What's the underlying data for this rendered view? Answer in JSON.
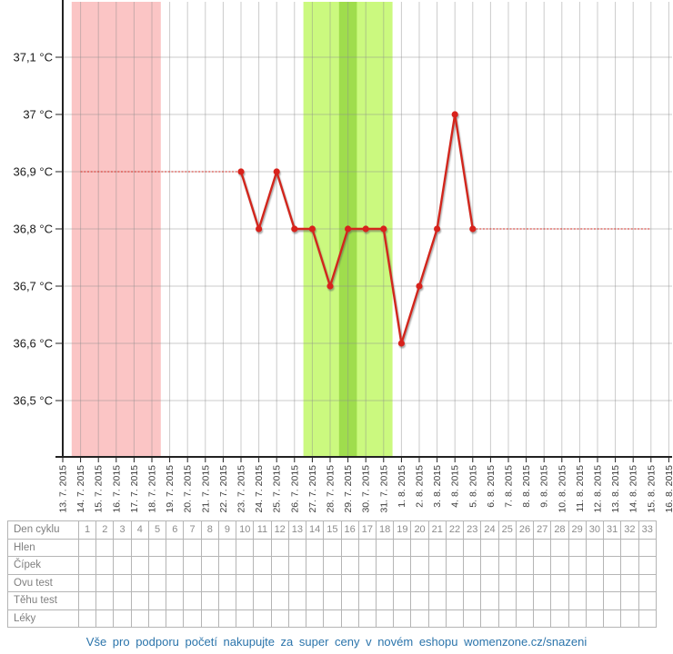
{
  "footer": {
    "text": "Vše pro podporu početí nakupujte za super ceny v novém eshopu womenzone.cz/snazeni"
  },
  "table": {
    "day_row_label": "Den cyklu",
    "days": [
      "1",
      "2",
      "3",
      "4",
      "5",
      "6",
      "7",
      "8",
      "9",
      "10",
      "11",
      "12",
      "13",
      "14",
      "15",
      "16",
      "17",
      "18",
      "19",
      "20",
      "21",
      "22",
      "23",
      "24",
      "25",
      "26",
      "27",
      "28",
      "29",
      "30",
      "31",
      "32",
      "33"
    ],
    "row_labels": [
      "Hlen",
      "Čípek",
      "Ovu test",
      "Těhu test",
      "Léky"
    ]
  },
  "chart_data": {
    "type": "line",
    "x_dates": [
      "13. 7. 2015",
      "14. 7. 2015",
      "15. 7. 2015",
      "16. 7. 2015",
      "17. 7. 2015",
      "18. 7. 2015",
      "19. 7. 2015",
      "20. 7. 2015",
      "21. 7. 2015",
      "22. 7. 2015",
      "23. 7. 2015",
      "24. 7. 2015",
      "25. 7. 2015",
      "26. 7. 2015",
      "27. 7. 2015",
      "28. 7. 2015",
      "29. 7. 2015",
      "30. 7. 2015",
      "31. 7. 2015",
      "1. 8. 2015",
      "2. 8. 2015",
      "3. 8. 2015",
      "4. 8. 2015",
      "5. 8. 2015",
      "6. 8. 2015",
      "7. 8. 2015",
      "8. 8. 2015",
      "9. 8. 2015",
      "10. 8. 2015",
      "11. 8. 2015",
      "12. 8. 2015",
      "13. 8. 2015",
      "14. 8. 2015",
      "15. 8. 2015",
      "16. 8. 2015"
    ],
    "y_ticks": [
      {
        "value": 36.5,
        "label": "36,5 °C"
      },
      {
        "value": 36.6,
        "label": "36,6 °C"
      },
      {
        "value": 36.7,
        "label": "36,7 °C"
      },
      {
        "value": 36.8,
        "label": "36,8 °C"
      },
      {
        "value": 36.9,
        "label": "36,9 °C"
      },
      {
        "value": 37.0,
        "label": "37 °C"
      },
      {
        "value": 37.1,
        "label": "37,1 °C"
      }
    ],
    "ylim": [
      36.4,
      37.2
    ],
    "grid": true,
    "legend": "none",
    "series": [
      {
        "name": "measured-temperature",
        "points": [
          {
            "date": "23. 7. 2015",
            "value": 36.9
          },
          {
            "date": "24. 7. 2015",
            "value": 36.8
          },
          {
            "date": "25. 7. 2015",
            "value": 36.9
          },
          {
            "date": "26. 7. 2015",
            "value": 36.8
          },
          {
            "date": "27. 7. 2015",
            "value": 36.8
          },
          {
            "date": "28. 7. 2015",
            "value": 36.7
          },
          {
            "date": "29. 7. 2015",
            "value": 36.8
          },
          {
            "date": "30. 7. 2015",
            "value": 36.8
          },
          {
            "date": "31. 7. 2015",
            "value": 36.8
          },
          {
            "date": "1. 8. 2015",
            "value": 36.6
          },
          {
            "date": "2. 8. 2015",
            "value": 36.7
          },
          {
            "date": "3. 8. 2015",
            "value": 36.8
          },
          {
            "date": "4. 8. 2015",
            "value": 37.0
          },
          {
            "date": "5. 8. 2015",
            "value": 36.8
          }
        ]
      }
    ],
    "baseline_segments": [
      {
        "from": "14. 7. 2015",
        "to": "23. 7. 2015",
        "value": 36.9,
        "style": "dotted"
      },
      {
        "from": "5. 8. 2015",
        "to": "15. 8. 2015",
        "value": 36.8,
        "style": "dotted"
      }
    ],
    "bands": [
      {
        "name": "menstruation",
        "from": "14. 7. 2015",
        "to": "18. 7. 2015",
        "color": "#fbc5c5"
      },
      {
        "name": "fertile-window",
        "from": "27. 7. 2015",
        "to": "31. 7. 2015",
        "color": "#cbf97f"
      },
      {
        "name": "ovulation-day",
        "from": "29. 7. 2015",
        "to": "29. 7. 2015",
        "color": "#9fdd4d"
      }
    ],
    "colors": {
      "line": "#d2271f",
      "marker": "#d8231b",
      "grid": "rgba(140,140,140,0.45)",
      "axis": "#222222",
      "date_label": "#3c3c3c",
      "y_label": "#1a1a1a"
    }
  }
}
